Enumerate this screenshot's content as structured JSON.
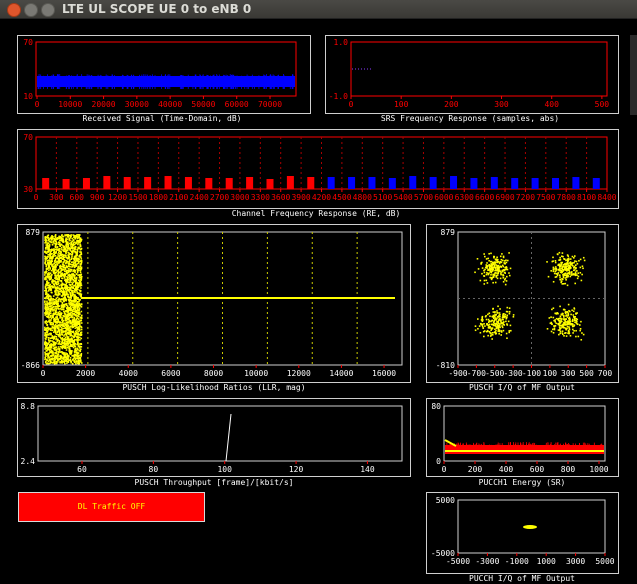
{
  "window": {
    "title": "LTE UL SCOPE UE 0 to eNB 0"
  },
  "colors": {
    "red": "#ff0000",
    "blue": "#0000ff",
    "yellow": "#ffff00",
    "axis": "#ff0000",
    "background": "#000000"
  },
  "plots": {
    "received_signal": {
      "caption": "Received Signal (Time-Domain, dB)",
      "y_ticks": [
        "70",
        "10"
      ],
      "x_ticks": [
        "0",
        "10000",
        "20000",
        "30000",
        "40000",
        "50000",
        "60000",
        "70000"
      ]
    },
    "srs_response": {
      "caption": "SRS Frequency Response (samples, abs)",
      "y_ticks": [
        "1.0",
        "-1.0"
      ],
      "x_ticks": [
        "0",
        "100",
        "200",
        "300",
        "400",
        "500"
      ]
    },
    "channel_response": {
      "caption": "Channel Frequency  Response (RE, dB)",
      "y_ticks": [
        "70",
        "30"
      ],
      "x_ticks": [
        "0",
        "300",
        "600",
        "900",
        "1200",
        "1500",
        "1800",
        "2100",
        "2400",
        "2700",
        "3000",
        "3300",
        "3600",
        "3900",
        "4200",
        "4500",
        "4800",
        "5100",
        "5400",
        "5700",
        "6000",
        "6300",
        "6600",
        "6900",
        "7200",
        "7500",
        "7800",
        "8100",
        "8400"
      ]
    },
    "llr": {
      "caption": "PUSCH Log-Likelihood Ratios (LLR, mag)",
      "y_ticks": [
        "879",
        "-866"
      ],
      "x_ticks": [
        "0",
        "2000",
        "4000",
        "6000",
        "8000",
        "10000",
        "12000",
        "14000",
        "16000"
      ]
    },
    "pusch_iq": {
      "caption": "PUSCH I/Q of MF Output",
      "y_ticks": [
        "879",
        "-810"
      ],
      "x_ticks": [
        "-900",
        "-700",
        "-500",
        "-300",
        "-100",
        "100",
        "300",
        "500",
        "700"
      ]
    },
    "throughput": {
      "caption": "PUSCH Throughput [frame]/[kbit/s]",
      "y_ticks": [
        "8.8",
        "2.4"
      ],
      "x_ticks": [
        "60",
        "80",
        "100",
        "120",
        "140"
      ]
    },
    "pucch_energy": {
      "caption": "PUCCH1 Energy (SR)",
      "y_ticks": [
        "80",
        "0"
      ],
      "x_ticks": [
        "0",
        "200",
        "400",
        "600",
        "800",
        "1000"
      ]
    },
    "pucch_iq": {
      "caption": "PUCCH I/Q of MF Output",
      "y_ticks": [
        "5000",
        "-5000"
      ],
      "x_ticks": [
        "-5000",
        "-3000",
        "-1000",
        "1000",
        "3000",
        "5000"
      ]
    }
  },
  "controls": {
    "dl_traffic_label": "DL Traffic OFF"
  }
}
